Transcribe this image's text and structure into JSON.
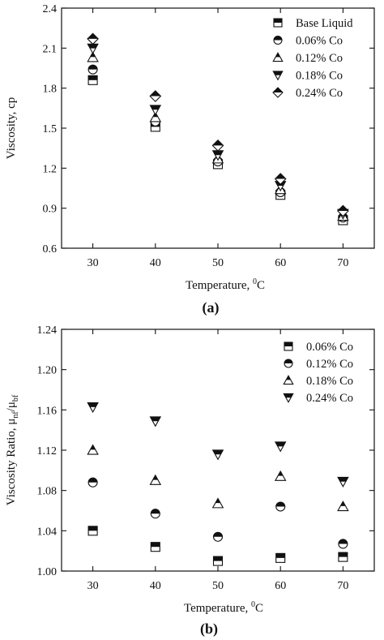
{
  "chart_data": [
    {
      "type": "scatter",
      "caption": "(a)",
      "xlabel": "Temperature, ",
      "xlabel_sup": "0",
      "xlabel_unit": "C",
      "ylabel": "Viscosity, cp",
      "xlim": [
        25,
        75
      ],
      "ylim": [
        0.6,
        2.4
      ],
      "x": [
        30,
        40,
        50,
        60,
        70
      ],
      "xticks": [
        "30",
        "40",
        "50",
        "60",
        "70"
      ],
      "yticks": [
        0.6,
        0.9,
        1.2,
        1.5,
        1.8,
        2.1,
        2.4
      ],
      "ytick_labels": [
        "0.6",
        "0.9",
        "1.2",
        "1.5",
        "1.8",
        "2.1",
        "2.4"
      ],
      "legend_position": "top-right",
      "series": [
        {
          "name": "Base Liquid",
          "marker": "square",
          "values": [
            1.86,
            1.51,
            1.23,
            1.0,
            0.81
          ]
        },
        {
          "name": "0.06% Co",
          "marker": "circle",
          "values": [
            1.94,
            1.55,
            1.25,
            1.02,
            0.83
          ]
        },
        {
          "name": "0.12% Co",
          "marker": "triangle-up",
          "values": [
            2.03,
            1.58,
            1.27,
            1.04,
            0.84
          ]
        },
        {
          "name": "0.18% Co",
          "marker": "triangle-down",
          "values": [
            2.1,
            1.64,
            1.3,
            1.07,
            0.86
          ]
        },
        {
          "name": "0.24% Co",
          "marker": "diamond",
          "values": [
            2.17,
            1.74,
            1.37,
            1.12,
            0.88
          ]
        }
      ]
    },
    {
      "type": "scatter",
      "caption": "(b)",
      "xlabel": "Temperature, ",
      "xlabel_sup": "0",
      "xlabel_unit": "C",
      "ylabel": "Viscosity Ratio, μ",
      "ylabel_sub1": "nf",
      "ylabel_mid": "/μ",
      "ylabel_sub2": "bf",
      "xlim": [
        25,
        75
      ],
      "ylim": [
        1.0,
        1.24
      ],
      "x": [
        30,
        40,
        50,
        60,
        70
      ],
      "xticks": [
        "30",
        "40",
        "50",
        "60",
        "70"
      ],
      "yticks": [
        1.0,
        1.04,
        1.08,
        1.12,
        1.16,
        1.2,
        1.24
      ],
      "ytick_labels": [
        "1.00",
        "1.04",
        "1.08",
        "1.12",
        "1.16",
        "1.20",
        "1.24"
      ],
      "legend_position": "top-right",
      "series": [
        {
          "name": "0.06% Co",
          "marker": "square",
          "values": [
            1.04,
            1.024,
            1.01,
            1.013,
            1.014
          ]
        },
        {
          "name": "0.12% Co",
          "marker": "circle",
          "values": [
            1.088,
            1.057,
            1.034,
            1.064,
            1.027
          ]
        },
        {
          "name": "0.18% Co",
          "marker": "triangle-up",
          "values": [
            1.12,
            1.09,
            1.067,
            1.094,
            1.064
          ]
        },
        {
          "name": "0.24% Co",
          "marker": "triangle-down",
          "values": [
            1.163,
            1.149,
            1.116,
            1.124,
            1.089
          ]
        }
      ]
    }
  ]
}
